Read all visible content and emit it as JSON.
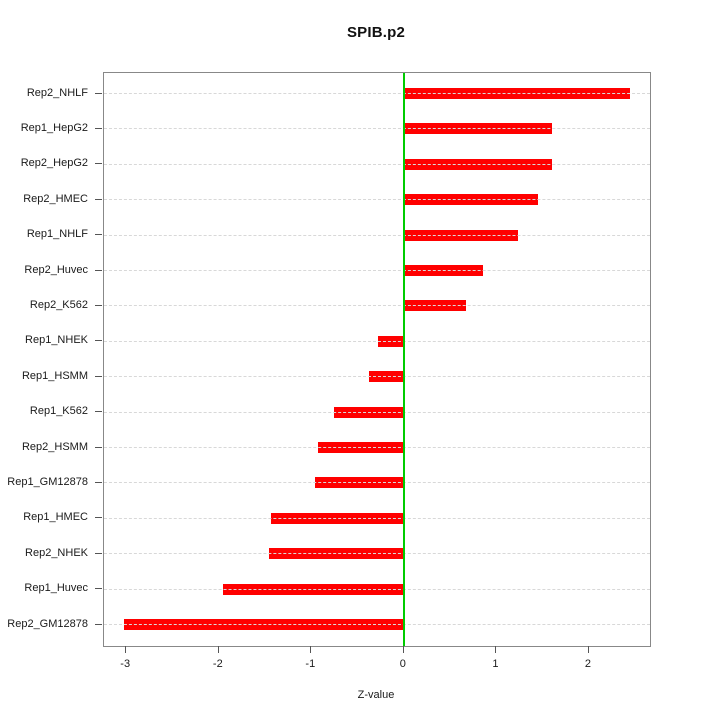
{
  "title": "SPIB.p2",
  "chart_data": {
    "type": "bar",
    "orientation": "horizontal",
    "title": "SPIB.p2",
    "xlabel": "Z-value",
    "ylabel": "",
    "categories": [
      "Rep2_NHLF",
      "Rep1_HepG2",
      "Rep2_HepG2",
      "Rep2_HMEC",
      "Rep1_NHLF",
      "Rep2_Huvec",
      "Rep2_K562",
      "Rep1_NHEK",
      "Rep1_HSMM",
      "Rep1_K562",
      "Rep2_HSMM",
      "Rep1_GM12878",
      "Rep1_HMEC",
      "Rep2_NHEK",
      "Rep1_Huvec",
      "Rep2_GM12878"
    ],
    "values": [
      2.44,
      1.6,
      1.6,
      1.45,
      1.23,
      0.86,
      0.67,
      -0.28,
      -0.38,
      -0.75,
      -0.93,
      -0.96,
      -1.44,
      -1.46,
      -1.96,
      -3.02
    ],
    "x_ticks": [
      -3,
      -2,
      -1,
      0,
      1,
      2
    ],
    "xlim": [
      -3.24,
      2.66
    ],
    "zero_reference_line": 0,
    "grid": "dotted horizontal line per category, drawn over bars",
    "legend": "none",
    "colors": {
      "bar": "#ff0000",
      "zero_line": "#00cc00",
      "grid": "#d8d8d8",
      "box": "#888888",
      "tick": "#555555",
      "text": "#1a1a1a",
      "background": "#ffffff"
    }
  }
}
